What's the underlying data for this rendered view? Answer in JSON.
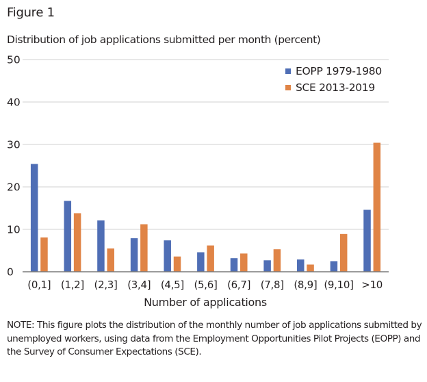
{
  "figure_label": "Figure 1",
  "note": "NOTE:  This figure plots the distribution of the monthly number of job applications submitted by unemployed workers, using data from the Employment Opportunities Pilot Projects (EOPP) and the Survey of Consumer Expectations (SCE).",
  "chart_data": {
    "type": "bar",
    "title": "Distribution of job applications submitted per month (percent)",
    "xlabel": "Number of applications",
    "ylabel": "",
    "ylim": [
      0,
      50
    ],
    "yticks": [
      0,
      10,
      20,
      30,
      40,
      50
    ],
    "grid": true,
    "legend_position": "top-right",
    "categories": [
      "(0,1]",
      "(1,2]",
      "(2,3]",
      "(3,4]",
      "(4,5]",
      "(5,6]",
      "(6,7]",
      "(7,8]",
      "(8,9]",
      "(9,10]",
      ">10"
    ],
    "series": [
      {
        "name": "EOPP 1979-1980",
        "color": "#4f6eb5",
        "values": [
          25.4,
          16.7,
          12.1,
          7.9,
          7.4,
          4.6,
          3.2,
          2.7,
          2.9,
          2.5,
          14.6
        ]
      },
      {
        "name": "SCE 2013-2019",
        "color": "#e08446",
        "values": [
          8.1,
          13.8,
          5.5,
          11.2,
          3.6,
          6.2,
          4.3,
          5.3,
          1.7,
          8.9,
          30.4
        ]
      }
    ]
  }
}
